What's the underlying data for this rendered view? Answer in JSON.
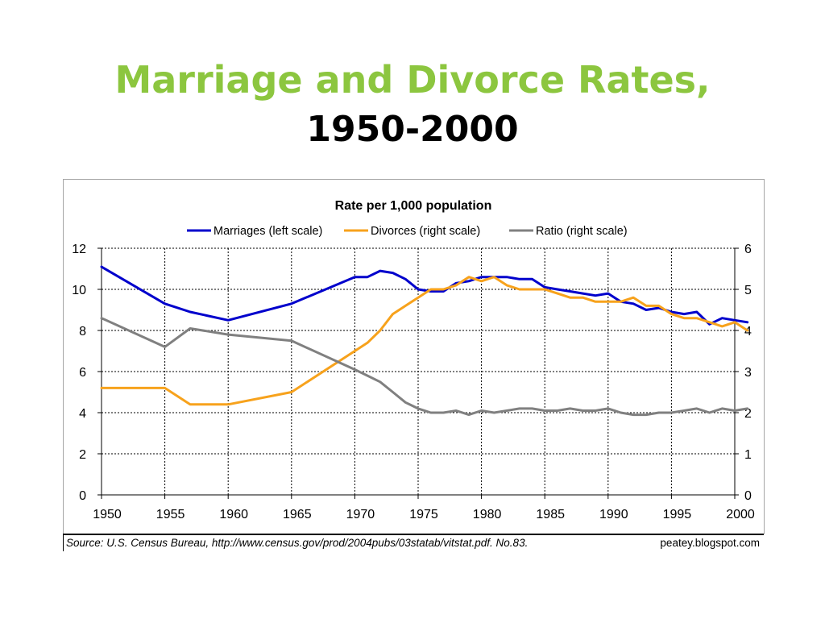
{
  "slide": {
    "title_line1": "Marriage and Divorce Rates,",
    "title_line2": "1950-2000"
  },
  "footer": {
    "source": "Source: U.S. Census Bureau, http://www.census.gov/prod/2004pubs/03statab/vitstat.pdf.  No.83.",
    "credit": "peatey.blogspot.com"
  },
  "chart_data": {
    "type": "line",
    "title": "Rate per 1,000 population",
    "xlim": [
      1950,
      2000
    ],
    "x_ticks": [
      1950,
      1955,
      1960,
      1965,
      1970,
      1975,
      1980,
      1985,
      1990,
      1995,
      2000
    ],
    "ylim_left": [
      0,
      12
    ],
    "y_ticks_left": [
      0,
      2,
      4,
      6,
      8,
      10,
      12
    ],
    "ylim_right": [
      0,
      6
    ],
    "y_ticks_right": [
      0,
      1,
      2,
      3,
      4,
      5,
      6
    ],
    "grid": true,
    "grid_style": "dashed",
    "legend_position": "top",
    "series": [
      {
        "name": "Marriages (left scale)",
        "axis": "left",
        "color": "#0000cc",
        "x": [
          1950,
          1955,
          1957,
          1960,
          1965,
          1970,
          1971,
          1972,
          1973,
          1974,
          1975,
          1976,
          1977,
          1978,
          1979,
          1980,
          1981,
          1982,
          1983,
          1984,
          1985,
          1986,
          1987,
          1988,
          1989,
          1990,
          1991,
          1992,
          1993,
          1994,
          1995,
          1996,
          1997,
          1998,
          1999,
          2000,
          2001
        ],
        "values": [
          11.1,
          9.3,
          8.9,
          8.5,
          9.3,
          10.6,
          10.6,
          10.9,
          10.8,
          10.5,
          10.0,
          9.9,
          9.9,
          10.3,
          10.4,
          10.6,
          10.6,
          10.6,
          10.5,
          10.5,
          10.1,
          10.0,
          9.9,
          9.8,
          9.7,
          9.8,
          9.4,
          9.3,
          9.0,
          9.1,
          8.9,
          8.8,
          8.9,
          8.3,
          8.6,
          8.5,
          8.4
        ]
      },
      {
        "name": "Divorces (right scale)",
        "axis": "right",
        "color": "#f7a21c",
        "x": [
          1950,
          1955,
          1957,
          1960,
          1965,
          1970,
          1971,
          1972,
          1973,
          1974,
          1975,
          1976,
          1977,
          1978,
          1979,
          1980,
          1981,
          1982,
          1983,
          1984,
          1985,
          1986,
          1987,
          1988,
          1989,
          1990,
          1991,
          1992,
          1993,
          1994,
          1995,
          1996,
          1997,
          1998,
          1999,
          2000,
          2001
        ],
        "values": [
          2.6,
          2.6,
          2.2,
          2.2,
          2.5,
          3.5,
          3.7,
          4.0,
          4.4,
          4.6,
          4.8,
          5.0,
          5.0,
          5.1,
          5.3,
          5.2,
          5.3,
          5.1,
          5.0,
          5.0,
          5.0,
          4.9,
          4.8,
          4.8,
          4.7,
          4.7,
          4.7,
          4.8,
          4.6,
          4.6,
          4.4,
          4.3,
          4.3,
          4.2,
          4.1,
          4.2,
          4.0
        ]
      },
      {
        "name": "Ratio (right scale)",
        "axis": "right",
        "color": "#808080",
        "x": [
          1950,
          1955,
          1957,
          1960,
          1965,
          1970,
          1971,
          1972,
          1973,
          1974,
          1975,
          1976,
          1977,
          1978,
          1979,
          1980,
          1981,
          1982,
          1983,
          1984,
          1985,
          1986,
          1987,
          1988,
          1989,
          1990,
          1991,
          1992,
          1993,
          1994,
          1995,
          1996,
          1997,
          1998,
          1999,
          2000,
          2001
        ],
        "values": [
          4.3,
          3.6,
          4.05,
          3.9,
          3.75,
          3.05,
          2.9,
          2.75,
          2.5,
          2.25,
          2.1,
          2.0,
          2.0,
          2.05,
          1.95,
          2.05,
          2.0,
          2.05,
          2.1,
          2.1,
          2.05,
          2.05,
          2.1,
          2.05,
          2.05,
          2.1,
          2.0,
          1.95,
          1.95,
          2.0,
          2.0,
          2.05,
          2.1,
          2.0,
          2.1,
          2.05,
          2.1
        ]
      }
    ]
  }
}
